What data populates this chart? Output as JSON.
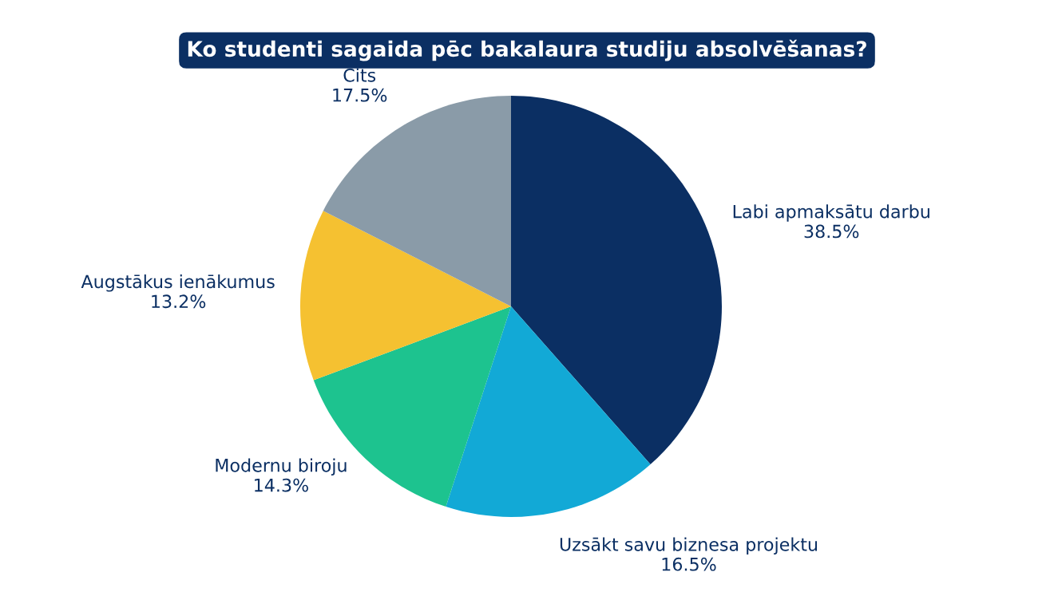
{
  "chart_data": {
    "type": "pie",
    "title": "Ko studenti sagaida pēc bakalaura studiju absolvēšanas?",
    "categories": [
      "Labi apmaksātu darbu",
      "Uzsākt savu biznesa projektu",
      "Modernu biroju",
      "Augstākus ienākumus",
      "Cits"
    ],
    "values": [
      38.5,
      16.5,
      14.3,
      13.2,
      17.5
    ],
    "value_labels": [
      "38.5%",
      "16.5%",
      "14.3%",
      "13.2%",
      "17.5%"
    ],
    "colors": [
      "#0b2f63",
      "#12a9d6",
      "#1dc38f",
      "#f5c131",
      "#8a9ba8"
    ],
    "legend": false
  }
}
